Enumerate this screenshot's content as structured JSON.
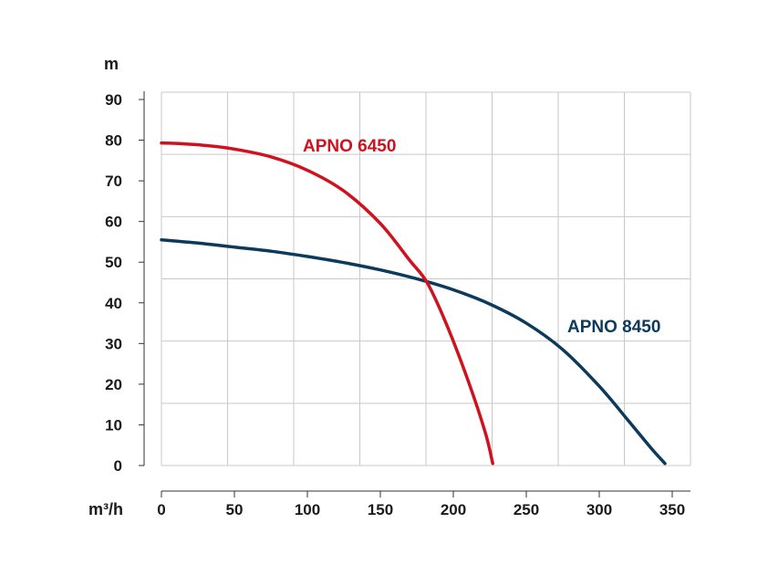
{
  "chart_data": {
    "type": "line",
    "title": "",
    "xlabel": "m³/h",
    "ylabel": "m",
    "xlim": [
      0,
      350
    ],
    "ylim": [
      0,
      90
    ],
    "x_ticks": [
      0,
      50,
      100,
      150,
      200,
      250,
      300,
      350
    ],
    "y_ticks": [
      0,
      10,
      20,
      30,
      40,
      50,
      60,
      70,
      80,
      90
    ],
    "x_tick_labels": [
      "0",
      "50",
      "100",
      "150",
      "200",
      "250",
      "300",
      "350"
    ],
    "y_tick_labels": [
      "0",
      "10",
      "20",
      "30",
      "40",
      "50",
      "60",
      "70",
      "80",
      "90"
    ],
    "grid": true,
    "series": [
      {
        "name": "APNO 6450",
        "color": "#d0121f",
        "x": [
          0,
          10,
          30,
          50,
          75,
          100,
          125,
          150,
          170,
          182,
          195,
          210,
          222,
          227
        ],
        "y": [
          79.3,
          79.2,
          78.7,
          77.8,
          75.9,
          72.6,
          67.5,
          59.5,
          50.5,
          45,
          35,
          21,
          8,
          0.5
        ]
      },
      {
        "name": "APNO 8450",
        "color": "#0b3a5c",
        "x": [
          0,
          25,
          50,
          75,
          100,
          125,
          150,
          175,
          200,
          225,
          250,
          275,
          300,
          320,
          335,
          345
        ],
        "y": [
          55.5,
          54.7,
          53.7,
          52.7,
          51.4,
          49.9,
          48.1,
          45.9,
          43.2,
          39.7,
          35,
          28.5,
          19.5,
          11,
          4.5,
          0.5
        ]
      }
    ]
  }
}
